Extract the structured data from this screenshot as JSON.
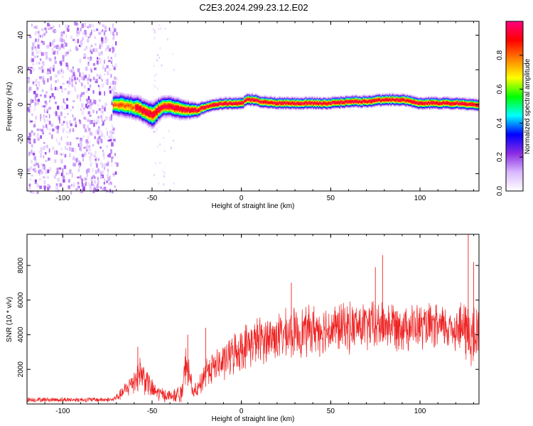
{
  "title": "C2E3.2024.299.23.12.E02",
  "chart_data": [
    {
      "type": "heatmap",
      "xlabel": "Height of straight line (km)",
      "ylabel": "Frequency (Hz)",
      "xlim": [
        -120,
        133
      ],
      "ylim": [
        -50,
        48
      ],
      "x_ticks": [
        "-100",
        "-50",
        "0",
        "50",
        "100"
      ],
      "x_tick_values": [
        -100,
        -50,
        0,
        50,
        100
      ],
      "y_ticks": [
        "-40",
        "-20",
        "0",
        "20",
        "40"
      ],
      "y_tick_values": [
        -40,
        -20,
        0,
        20,
        40
      ],
      "colorbar": {
        "label": "Normalized spectral amplitude",
        "range": [
          0,
          1
        ],
        "ticks": [
          "0.0",
          "0.2",
          "0.4",
          "0.6",
          "0.8"
        ],
        "tick_values": [
          0,
          0.2,
          0.4,
          0.6,
          0.8
        ],
        "colors": [
          "#ffffff",
          "#d9b8ff",
          "#8a2be2",
          "#0000ff",
          "#00ffff",
          "#00ff00",
          "#ffff00",
          "#ff8000",
          "#ff0000",
          "#ff0080"
        ]
      },
      "noise_region": {
        "x": [
          -120,
          -70
        ],
        "freq": [
          -50,
          48
        ]
      },
      "ridge": {
        "x": [
          -72,
          -68,
          -62,
          -58,
          -54,
          -50,
          -47,
          -44,
          -40,
          -35,
          -30,
          -25,
          -20,
          -15,
          -10,
          -5,
          0,
          3,
          6,
          10,
          20,
          30,
          40,
          50,
          60,
          70,
          80,
          90,
          100,
          110,
          120,
          133
        ],
        "freq": [
          0,
          0,
          -1,
          -2,
          -4,
          -6,
          -3,
          -1,
          -1,
          -2,
          -3,
          -3,
          -1,
          0,
          1,
          1,
          1,
          3,
          3,
          2,
          1,
          1,
          1,
          1,
          2,
          2,
          3,
          3,
          1,
          1,
          1,
          0
        ],
        "width": [
          7,
          8,
          8,
          8,
          8,
          9,
          8,
          7,
          7,
          7,
          6,
          5,
          4,
          4,
          4,
          4,
          4,
          4,
          4,
          4,
          4,
          4,
          4,
          4,
          4,
          4,
          4,
          4,
          4,
          4,
          4,
          4
        ]
      }
    },
    {
      "type": "line",
      "xlabel": "Height of straight line (km)",
      "ylabel": "SNR (10 * v/v)",
      "xlim": [
        -120,
        133
      ],
      "ylim": [
        0,
        9800
      ],
      "x_ticks": [
        "-100",
        "-50",
        "0",
        "50",
        "100"
      ],
      "x_tick_values": [
        -100,
        -50,
        0,
        50,
        100
      ],
      "y_ticks": [
        "2000",
        "4000",
        "6000",
        "8000"
      ],
      "y_tick_values": [
        2000,
        4000,
        6000,
        8000
      ],
      "color": "#ee2222",
      "envelope": {
        "x": [
          -120,
          -72,
          -68,
          -64,
          -60,
          -57,
          -54,
          -50,
          -46,
          -42,
          -40,
          -36,
          -33,
          -31,
          -29,
          -27,
          -25,
          -22,
          -20,
          -16,
          -10,
          -5,
          0,
          5,
          10,
          20,
          30,
          40,
          50,
          60,
          70,
          80,
          90,
          100,
          110,
          120,
          125,
          130,
          133
        ],
        "mean": [
          250,
          250,
          500,
          900,
          1400,
          1900,
          1500,
          800,
          600,
          500,
          450,
          500,
          700,
          2500,
          1600,
          700,
          700,
          1300,
          2000,
          2100,
          2400,
          2900,
          3200,
          3500,
          3700,
          3900,
          4100,
          4300,
          4350,
          4450,
          4500,
          4600,
          4550,
          4450,
          4400,
          4400,
          4350,
          3800,
          4000
        ],
        "spread": [
          120,
          120,
          250,
          450,
          700,
          900,
          800,
          500,
          400,
          300,
          300,
          350,
          500,
          900,
          700,
          400,
          400,
          600,
          700,
          800,
          900,
          1000,
          1050,
          1100,
          1150,
          1150,
          1200,
          1200,
          1200,
          1200,
          1200,
          1200,
          1200,
          1100,
          1100,
          1100,
          1500,
          1800,
          1500
        ]
      },
      "peaks": [
        {
          "x": -58,
          "y": 3300
        },
        {
          "x": -30,
          "y": 4000
        },
        {
          "x": -20,
          "y": 4400
        },
        {
          "x": 28,
          "y": 7000
        },
        {
          "x": 75,
          "y": 7900
        },
        {
          "x": 79,
          "y": 8600
        },
        {
          "x": 127,
          "y": 9800
        },
        {
          "x": 130,
          "y": 8200
        }
      ]
    }
  ]
}
